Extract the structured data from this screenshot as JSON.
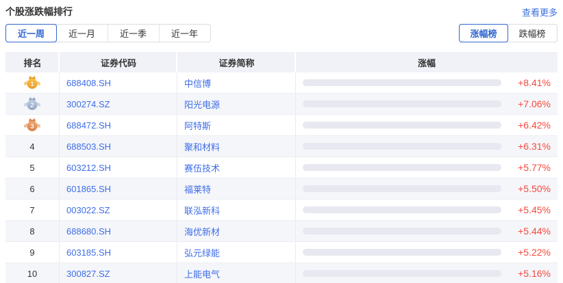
{
  "header": {
    "title": "个股涨跌幅排行",
    "more_link": "查看更多"
  },
  "period_tabs": [
    {
      "label": "近一周",
      "active": true
    },
    {
      "label": "近一月",
      "active": false
    },
    {
      "label": "近一季",
      "active": false
    },
    {
      "label": "近一年",
      "active": false
    }
  ],
  "board_tabs": [
    {
      "label": "涨幅榜",
      "active": true
    },
    {
      "label": "跌幅榜",
      "active": false
    }
  ],
  "table": {
    "columns": [
      "排名",
      "证券代码",
      "证券简称",
      "涨幅"
    ],
    "max_change_pct": 8.41,
    "rows": [
      {
        "rank": "1",
        "code": "688408.SH",
        "name": "中信博",
        "change": "+8.41%",
        "pct": 8.41
      },
      {
        "rank": "2",
        "code": "300274.SZ",
        "name": "阳光电源",
        "change": "+7.06%",
        "pct": 7.06
      },
      {
        "rank": "3",
        "code": "688472.SH",
        "name": "阿特斯",
        "change": "+6.42%",
        "pct": 6.42
      },
      {
        "rank": "4",
        "code": "688503.SH",
        "name": "聚和材料",
        "change": "+6.31%",
        "pct": 6.31
      },
      {
        "rank": "5",
        "code": "603212.SH",
        "name": "赛伍技术",
        "change": "+5.77%",
        "pct": 5.77
      },
      {
        "rank": "6",
        "code": "601865.SH",
        "name": "福莱特",
        "change": "+5.50%",
        "pct": 5.5
      },
      {
        "rank": "7",
        "code": "003022.SZ",
        "name": "联泓新科",
        "change": "+5.45%",
        "pct": 5.45
      },
      {
        "rank": "8",
        "code": "688680.SH",
        "name": "海优新材",
        "change": "+5.44%",
        "pct": 5.44
      },
      {
        "rank": "9",
        "code": "603185.SH",
        "name": "弘元绿能",
        "change": "+5.22%",
        "pct": 5.22
      },
      {
        "rank": "10",
        "code": "300827.SZ",
        "name": "上能电气",
        "change": "+5.16%",
        "pct": 5.16
      }
    ]
  },
  "colors": {
    "accent_blue": "#3166d0",
    "link_blue": "#3c6fe0",
    "code_blue": "#3d6de8",
    "rise_red": "#f5493c",
    "bar_gradient_start": "#f02a4c",
    "bar_gradient_end": "#fb7e74",
    "bar_track": "#e7e8f0",
    "header_bg": "#f1f2f8",
    "alt_row_bg": "#f5f6fa",
    "medal_gold": "#ec9c28",
    "medal_silver": "#92a8c5",
    "medal_bronze": "#dd8048"
  }
}
